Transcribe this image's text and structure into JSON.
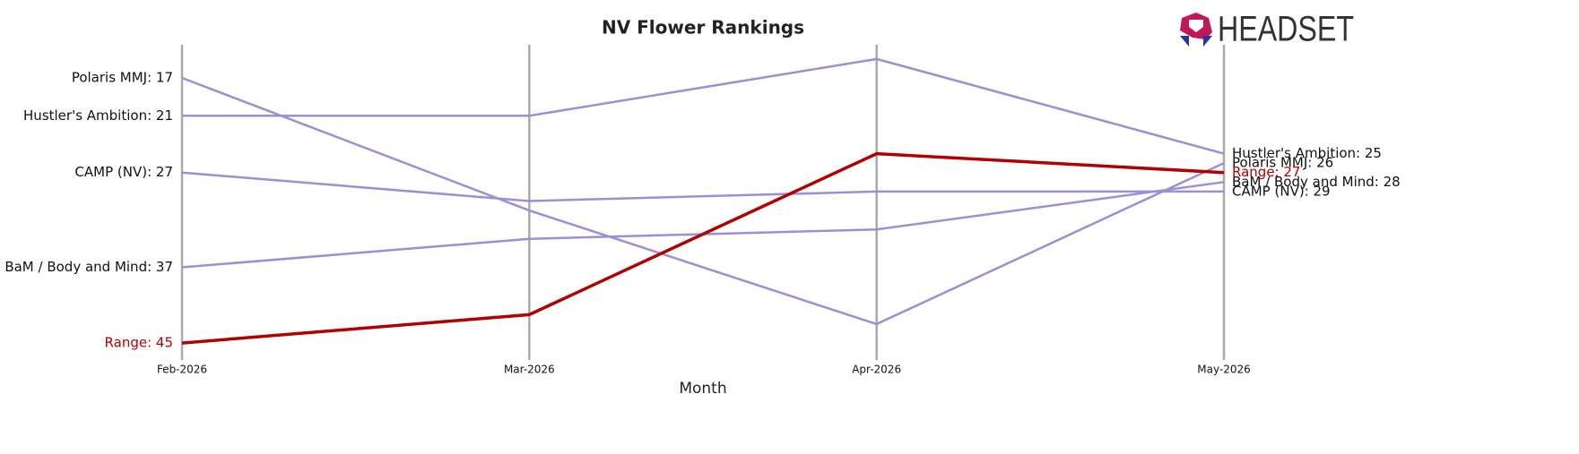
{
  "chart_data": {
    "type": "line",
    "title": "NV Flower Rankings",
    "xlabel": "Month",
    "categories": [
      "Feb-2026",
      "Mar-2026",
      "Apr-2026",
      "May-2026"
    ],
    "ylim": [
      46.6,
      13.5
    ],
    "inverted": true,
    "grid": false,
    "series": [
      {
        "name": "Polaris MMJ",
        "color": "#9b8fd8",
        "values": [
          17,
          31,
          43,
          26
        ],
        "value_labels": [
          "Polaris MMJ: 17",
          null,
          null,
          "Polaris MMJ: 26"
        ]
      },
      {
        "name": "Hustler's Ambition",
        "color": "#9b8fd8",
        "values": [
          21,
          21,
          15,
          25
        ],
        "value_labels": [
          "Hustler's Ambition: 21",
          null,
          null,
          "Hustler's Ambition: 25"
        ]
      },
      {
        "name": "CAMP (NV)",
        "color": "#9b8fd8",
        "values": [
          27,
          30,
          29,
          29
        ],
        "value_labels": [
          "CAMP (NV): 27",
          null,
          null,
          "CAMP (NV): 29"
        ]
      },
      {
        "name": "BaM / Body and Mind",
        "color": "#9b8fd8",
        "values": [
          37,
          34,
          33,
          28
        ],
        "value_labels": [
          "BaM / Body and Mind: 37",
          null,
          null,
          "BaM / Body and Mind: 28"
        ]
      },
      {
        "name": "Range",
        "color": "#b30000",
        "values": [
          45,
          42,
          25,
          27
        ],
        "value_labels": [
          "Range: 45",
          null,
          null,
          "Range: 27"
        ]
      }
    ],
    "logo": "HEADSET"
  }
}
